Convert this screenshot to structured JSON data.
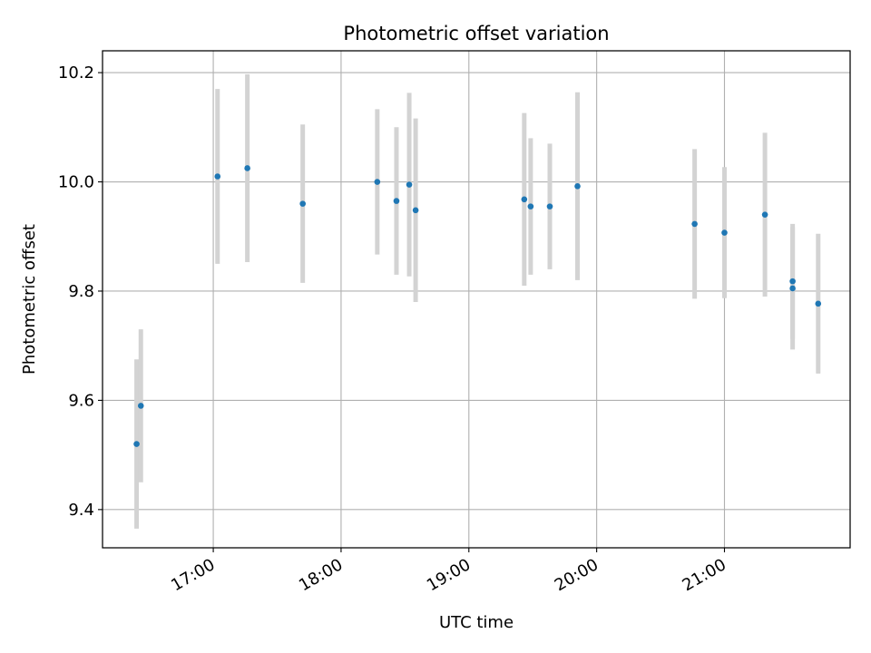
{
  "chart_data": {
    "type": "scatter",
    "title": "Photometric offset variation",
    "xlabel": "UTC time",
    "ylabel": "Photometric offset",
    "x_ticks": [
      "17:00",
      "18:00",
      "19:00",
      "20:00",
      "21:00"
    ],
    "y_ticks": [
      "9.4",
      "9.6",
      "9.8",
      "10.0",
      "10.2"
    ],
    "xlim": [
      "16:08",
      "21:59"
    ],
    "ylim": [
      9.33,
      10.24
    ],
    "grid": true,
    "colors": {
      "marker": "#1f77b4",
      "errorbar": "#d3d3d3",
      "grid": "#b0b0b0"
    },
    "series": [
      {
        "points": [
          {
            "x": "16:24",
            "y": 9.52,
            "err": 0.155
          },
          {
            "x": "16:26",
            "y": 9.59,
            "err": 0.14
          },
          {
            "x": "17:02",
            "y": 10.01,
            "err": 0.16
          },
          {
            "x": "17:16",
            "y": 10.025,
            "err": 0.172
          },
          {
            "x": "17:42",
            "y": 9.96,
            "err": 0.145
          },
          {
            "x": "18:17",
            "y": 10.0,
            "err": 0.133
          },
          {
            "x": "18:26",
            "y": 9.965,
            "err": 0.135
          },
          {
            "x": "18:32",
            "y": 9.995,
            "err": 0.168
          },
          {
            "x": "18:35",
            "y": 9.948,
            "err": 0.168
          },
          {
            "x": "19:26",
            "y": 9.968,
            "err": 0.158
          },
          {
            "x": "19:29",
            "y": 9.955,
            "err": 0.125
          },
          {
            "x": "19:38",
            "y": 9.955,
            "err": 0.115
          },
          {
            "x": "19:51",
            "y": 9.992,
            "err": 0.172
          },
          {
            "x": "20:46",
            "y": 9.923,
            "err": 0.137
          },
          {
            "x": "21:00",
            "y": 9.907,
            "err": 0.12
          },
          {
            "x": "21:19",
            "y": 9.94,
            "err": 0.15
          },
          {
            "x": "21:32",
            "y": 9.818,
            "err": 0.105
          },
          {
            "x": "21:32",
            "y": 9.805,
            "err": 0.112
          },
          {
            "x": "21:44",
            "y": 9.777,
            "err": 0.128
          }
        ]
      }
    ]
  }
}
